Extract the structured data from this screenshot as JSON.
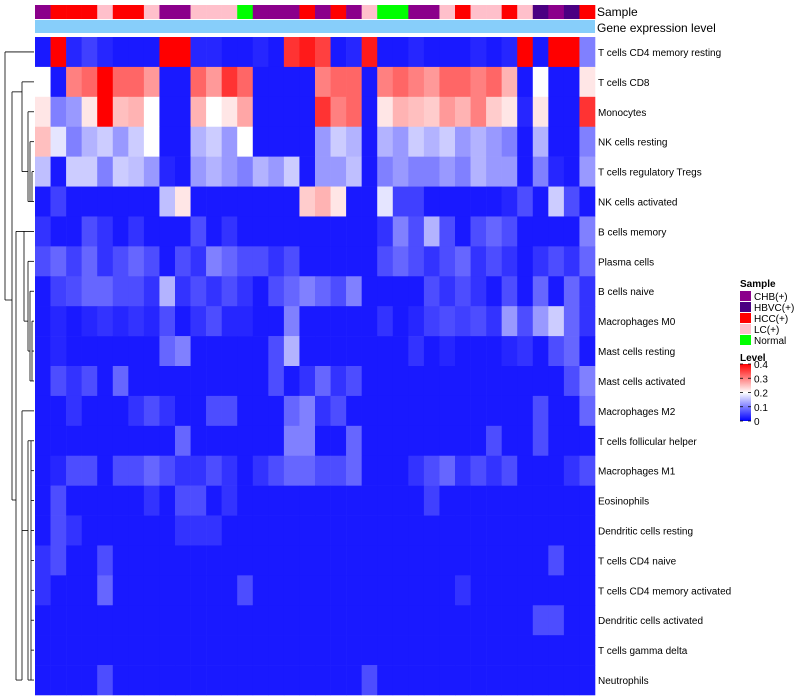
{
  "chart_data": {
    "type": "heatmap",
    "title": "",
    "annotation_labels": {
      "sample": "Sample",
      "gene_expression": "Gene expression level"
    },
    "rows": [
      "T cells CD4 memory resting",
      "T cells CD8",
      "Monocytes",
      "NK cells resting",
      "T cells regulatory  Tregs",
      "NK cells activated",
      "B cells memory",
      "Plasma cells",
      "B cells naive",
      "Macrophages M0",
      "Mast cells resting",
      "Mast cells activated",
      "Macrophages M2",
      "T cells follicular helper",
      "Macrophages M1",
      "Eosinophils",
      "Dendritic cells resting",
      "T cells CD4 naive",
      "T cells CD4 memory activated",
      "Dendritic cells activated",
      "T cells gamma delta",
      "Neutrophils"
    ],
    "samples": [
      "CHB",
      "HCC",
      "HCC",
      "HCC",
      "LC",
      "HCC",
      "HCC",
      "LC",
      "CHB",
      "CHB",
      "LC",
      "LC",
      "LC",
      "Normal",
      "CHB",
      "CHB",
      "CHB",
      "HCC",
      "CHB",
      "HCC",
      "CHB",
      "LC",
      "Normal",
      "Normal",
      "CHB",
      "CHB",
      "LC",
      "HCC",
      "LC",
      "LC",
      "HCC",
      "LC",
      "HBVC",
      "CHB",
      "HBVC",
      "HCC"
    ],
    "sample_colors": {
      "CHB": "#8b008b",
      "HBVC": "#4b0082",
      "HCC": "#ff0000",
      "LC": "#ffc0cb",
      "Normal": "#00ff00"
    },
    "gene_expression_color": "#87cefa",
    "legend_sample": {
      "title": "Sample",
      "items": [
        {
          "key": "CHB",
          "label": "CHB(+)"
        },
        {
          "key": "HBVC",
          "label": "HBVC(+)"
        },
        {
          "key": "HCC",
          "label": "HCC(+)"
        },
        {
          "key": "LC",
          "label": "LC(+)"
        },
        {
          "key": "Normal",
          "label": "Normal"
        }
      ]
    },
    "legend_level": {
      "title": "Level",
      "min": 0,
      "max": 0.4,
      "ticks": [
        {
          "value": 0.4,
          "label": "0.4"
        },
        {
          "value": 0.3,
          "label": "0.3"
        },
        {
          "value": 0.2,
          "label": "0.2"
        },
        {
          "value": 0.1,
          "label": "0.1"
        },
        {
          "value": 0,
          "label": "0"
        }
      ]
    },
    "color_scale": [
      "#0000ff",
      "#ffffff",
      "#ff0000"
    ],
    "values": [
      [
        0.02,
        0.4,
        0.03,
        0.05,
        0.03,
        0.02,
        0.02,
        0.02,
        0.4,
        0.4,
        0.03,
        0.03,
        0.02,
        0.02,
        0.03,
        0.02,
        0.36,
        0.38,
        0.35,
        0.02,
        0.03,
        0.38,
        0.02,
        0.02,
        0.03,
        0.02,
        0.02,
        0.02,
        0.03,
        0.02,
        0.03,
        0.4,
        0.02,
        0.4,
        0.4,
        0.1
      ],
      [
        0.2,
        0.02,
        0.3,
        0.32,
        0.4,
        0.32,
        0.32,
        0.28,
        0.02,
        0.02,
        0.32,
        0.28,
        0.36,
        0.32,
        0.02,
        0.02,
        0.02,
        0.02,
        0.3,
        0.32,
        0.32,
        0.02,
        0.3,
        0.32,
        0.3,
        0.28,
        0.32,
        0.32,
        0.3,
        0.32,
        0.26,
        0.02,
        0.2,
        0.02,
        0.02,
        0.22
      ],
      [
        0.22,
        0.1,
        0.12,
        0.22,
        0.4,
        0.25,
        0.26,
        0.2,
        0.02,
        0.02,
        0.26,
        0.2,
        0.22,
        0.27,
        0.02,
        0.02,
        0.02,
        0.02,
        0.36,
        0.3,
        0.32,
        0.02,
        0.22,
        0.26,
        0.25,
        0.24,
        0.28,
        0.26,
        0.3,
        0.24,
        0.22,
        0.03,
        0.22,
        0.02,
        0.02,
        0.36
      ],
      [
        0.25,
        0.18,
        0.1,
        0.14,
        0.16,
        0.12,
        0.16,
        0.2,
        0.02,
        0.02,
        0.14,
        0.16,
        0.12,
        0.2,
        0.02,
        0.02,
        0.02,
        0.02,
        0.12,
        0.16,
        0.14,
        0.02,
        0.14,
        0.12,
        0.16,
        0.14,
        0.16,
        0.12,
        0.14,
        0.12,
        0.1,
        0.02,
        0.14,
        0.02,
        0.02,
        0.1
      ],
      [
        0.15,
        0.02,
        0.16,
        0.16,
        0.1,
        0.16,
        0.15,
        0.12,
        0.03,
        0.02,
        0.12,
        0.14,
        0.12,
        0.1,
        0.14,
        0.12,
        0.16,
        0.02,
        0.12,
        0.12,
        0.15,
        0.02,
        0.1,
        0.12,
        0.1,
        0.1,
        0.12,
        0.1,
        0.14,
        0.12,
        0.12,
        0.02,
        0.1,
        0.03,
        0.02,
        0.12
      ],
      [
        0.02,
        0.05,
        0.02,
        0.02,
        0.02,
        0.02,
        0.02,
        0.02,
        0.15,
        0.22,
        0.02,
        0.02,
        0.02,
        0.02,
        0.02,
        0.02,
        0.02,
        0.24,
        0.26,
        0.22,
        0.02,
        0.02,
        0.18,
        0.05,
        0.05,
        0.02,
        0.02,
        0.02,
        0.02,
        0.02,
        0.03,
        0.06,
        0.02,
        0.16,
        0.06,
        0.02
      ],
      [
        0.04,
        0.02,
        0.02,
        0.06,
        0.04,
        0.02,
        0.04,
        0.02,
        0.02,
        0.02,
        0.06,
        0.02,
        0.04,
        0.02,
        0.02,
        0.02,
        0.02,
        0.02,
        0.02,
        0.02,
        0.02,
        0.02,
        0.04,
        0.1,
        0.06,
        0.14,
        0.06,
        0.02,
        0.06,
        0.08,
        0.06,
        0.02,
        0.02,
        0.02,
        0.02,
        0.1
      ],
      [
        0.06,
        0.08,
        0.05,
        0.08,
        0.04,
        0.06,
        0.08,
        0.06,
        0.02,
        0.06,
        0.04,
        0.1,
        0.08,
        0.06,
        0.06,
        0.04,
        0.06,
        0.02,
        0.02,
        0.02,
        0.02,
        0.02,
        0.06,
        0.08,
        0.06,
        0.04,
        0.06,
        0.08,
        0.04,
        0.06,
        0.04,
        0.02,
        0.04,
        0.06,
        0.04,
        0.08
      ],
      [
        0.02,
        0.05,
        0.06,
        0.08,
        0.08,
        0.06,
        0.06,
        0.04,
        0.14,
        0.04,
        0.06,
        0.04,
        0.06,
        0.04,
        0.02,
        0.06,
        0.08,
        0.1,
        0.08,
        0.06,
        0.1,
        0.02,
        0.02,
        0.02,
        0.02,
        0.06,
        0.04,
        0.06,
        0.04,
        0.02,
        0.06,
        0.02,
        0.08,
        0.02,
        0.08,
        0.04
      ],
      [
        0.02,
        0.03,
        0.02,
        0.03,
        0.04,
        0.03,
        0.04,
        0.03,
        0.06,
        0.02,
        0.04,
        0.06,
        0.03,
        0.03,
        0.02,
        0.02,
        0.1,
        0.02,
        0.02,
        0.02,
        0.02,
        0.02,
        0.04,
        0.02,
        0.03,
        0.05,
        0.06,
        0.05,
        0.06,
        0.04,
        0.12,
        0.06,
        0.12,
        0.16,
        0.08,
        0.04
      ],
      [
        0.02,
        0.03,
        0.02,
        0.02,
        0.02,
        0.02,
        0.02,
        0.02,
        0.08,
        0.1,
        0.02,
        0.02,
        0.02,
        0.02,
        0.02,
        0.06,
        0.14,
        0.02,
        0.02,
        0.02,
        0.02,
        0.02,
        0.02,
        0.02,
        0.04,
        0.02,
        0.03,
        0.02,
        0.02,
        0.02,
        0.03,
        0.04,
        0.02,
        0.06,
        0.08,
        0.02
      ],
      [
        0.02,
        0.06,
        0.04,
        0.06,
        0.02,
        0.08,
        0.02,
        0.02,
        0.02,
        0.02,
        0.02,
        0.02,
        0.02,
        0.02,
        0.02,
        0.06,
        0.02,
        0.04,
        0.08,
        0.04,
        0.06,
        0.02,
        0.02,
        0.02,
        0.02,
        0.02,
        0.02,
        0.02,
        0.02,
        0.02,
        0.02,
        0.02,
        0.02,
        0.02,
        0.06,
        0.1
      ],
      [
        0.02,
        0.02,
        0.04,
        0.02,
        0.02,
        0.02,
        0.04,
        0.06,
        0.04,
        0.02,
        0.02,
        0.06,
        0.06,
        0.02,
        0.02,
        0.02,
        0.08,
        0.1,
        0.04,
        0.06,
        0.02,
        0.02,
        0.02,
        0.02,
        0.02,
        0.02,
        0.02,
        0.02,
        0.02,
        0.02,
        0.02,
        0.02,
        0.06,
        0.02,
        0.02,
        0.08
      ],
      [
        0.02,
        0.02,
        0.02,
        0.02,
        0.02,
        0.02,
        0.02,
        0.02,
        0.02,
        0.08,
        0.02,
        0.02,
        0.02,
        0.02,
        0.02,
        0.02,
        0.1,
        0.1,
        0.02,
        0.02,
        0.08,
        0.02,
        0.02,
        0.02,
        0.02,
        0.02,
        0.02,
        0.02,
        0.02,
        0.06,
        0.02,
        0.02,
        0.06,
        0.02,
        0.02,
        0.02
      ],
      [
        0.02,
        0.03,
        0.06,
        0.06,
        0.02,
        0.06,
        0.06,
        0.08,
        0.06,
        0.04,
        0.04,
        0.06,
        0.04,
        0.02,
        0.04,
        0.06,
        0.08,
        0.08,
        0.06,
        0.06,
        0.08,
        0.02,
        0.02,
        0.02,
        0.04,
        0.06,
        0.08,
        0.04,
        0.06,
        0.04,
        0.06,
        0.02,
        0.02,
        0.02,
        0.04,
        0.06
      ],
      [
        0.02,
        0.06,
        0.02,
        0.02,
        0.02,
        0.02,
        0.02,
        0.04,
        0.02,
        0.06,
        0.06,
        0.02,
        0.04,
        0.02,
        0.02,
        0.02,
        0.02,
        0.02,
        0.02,
        0.02,
        0.02,
        0.02,
        0.02,
        0.02,
        0.02,
        0.05,
        0.02,
        0.02,
        0.02,
        0.02,
        0.02,
        0.02,
        0.02,
        0.02,
        0.02,
        0.02
      ],
      [
        0.02,
        0.06,
        0.04,
        0.02,
        0.02,
        0.02,
        0.02,
        0.02,
        0.02,
        0.04,
        0.04,
        0.04,
        0.02,
        0.02,
        0.02,
        0.02,
        0.02,
        0.02,
        0.02,
        0.02,
        0.02,
        0.02,
        0.02,
        0.02,
        0.02,
        0.02,
        0.02,
        0.02,
        0.02,
        0.02,
        0.02,
        0.02,
        0.02,
        0.02,
        0.02,
        0.02
      ],
      [
        0.04,
        0.06,
        0.02,
        0.02,
        0.06,
        0.02,
        0.02,
        0.02,
        0.02,
        0.02,
        0.02,
        0.02,
        0.02,
        0.02,
        0.02,
        0.02,
        0.02,
        0.02,
        0.02,
        0.02,
        0.02,
        0.02,
        0.02,
        0.02,
        0.02,
        0.02,
        0.02,
        0.02,
        0.02,
        0.02,
        0.02,
        0.02,
        0.02,
        0.06,
        0.02,
        0.02
      ],
      [
        0.04,
        0.02,
        0.02,
        0.02,
        0.08,
        0.02,
        0.02,
        0.02,
        0.02,
        0.02,
        0.02,
        0.02,
        0.02,
        0.06,
        0.02,
        0.02,
        0.02,
        0.02,
        0.02,
        0.02,
        0.02,
        0.02,
        0.02,
        0.02,
        0.02,
        0.02,
        0.02,
        0.04,
        0.02,
        0.02,
        0.02,
        0.02,
        0.02,
        0.02,
        0.02,
        0.02
      ],
      [
        0.02,
        0.02,
        0.02,
        0.02,
        0.02,
        0.02,
        0.02,
        0.02,
        0.02,
        0.02,
        0.02,
        0.02,
        0.02,
        0.02,
        0.02,
        0.02,
        0.02,
        0.02,
        0.02,
        0.02,
        0.02,
        0.02,
        0.02,
        0.02,
        0.02,
        0.02,
        0.02,
        0.02,
        0.02,
        0.02,
        0.02,
        0.02,
        0.06,
        0.06,
        0.02,
        0.02
      ],
      [
        0.02,
        0.02,
        0.02,
        0.02,
        0.02,
        0.02,
        0.02,
        0.02,
        0.02,
        0.02,
        0.02,
        0.02,
        0.02,
        0.02,
        0.02,
        0.02,
        0.02,
        0.02,
        0.02,
        0.02,
        0.02,
        0.02,
        0.02,
        0.02,
        0.02,
        0.02,
        0.02,
        0.02,
        0.02,
        0.02,
        0.02,
        0.02,
        0.02,
        0.02,
        0.02,
        0.02
      ],
      [
        0.02,
        0.02,
        0.02,
        0.02,
        0.06,
        0.02,
        0.02,
        0.02,
        0.02,
        0.02,
        0.02,
        0.02,
        0.02,
        0.02,
        0.02,
        0.02,
        0.02,
        0.02,
        0.02,
        0.02,
        0.02,
        0.06,
        0.02,
        0.02,
        0.02,
        0.02,
        0.02,
        0.02,
        0.02,
        0.02,
        0.02,
        0.02,
        0.02,
        0.02,
        0.02,
        0.02
      ]
    ]
  }
}
